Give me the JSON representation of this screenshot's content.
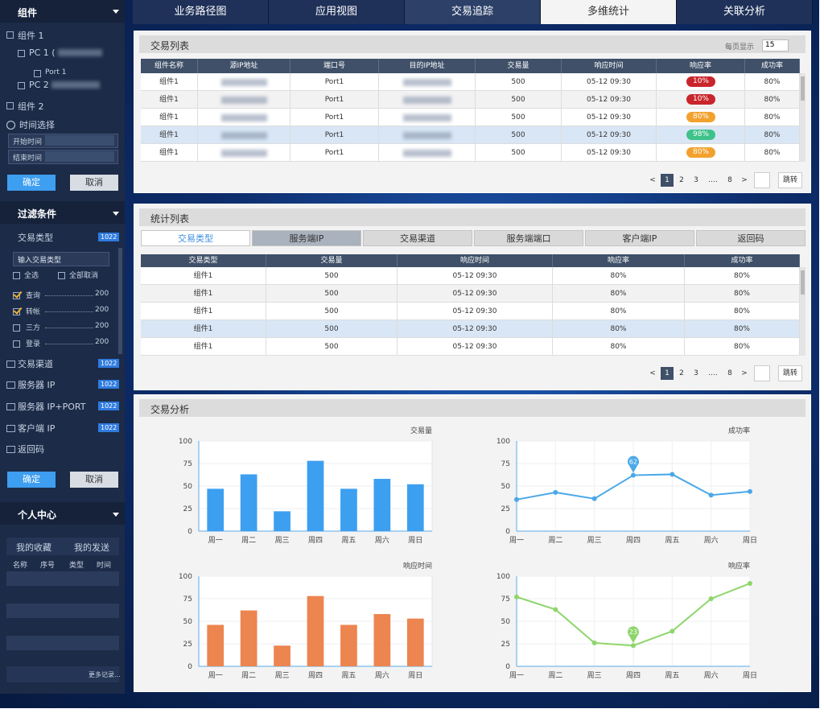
{
  "sidebar": {
    "components": {
      "title": "组件",
      "group1": "组件 1",
      "pc1": "PC 1 (",
      "port1": "Port 1",
      "pc2": "PC 2",
      "group2": "组件 2"
    },
    "time": {
      "title": "时间选择",
      "start": "开始时间",
      "end": "结束时间",
      "confirm": "确定",
      "cancel": "取消"
    },
    "filter": {
      "title": "过滤条件",
      "type_title": "交易类型",
      "type_count": 1022,
      "placeholder": "输入交易类型",
      "select_all": "全选",
      "deselect_all": "全部取消",
      "items": [
        {
          "label": "查询",
          "count": 200,
          "checked": true
        },
        {
          "label": "转帐",
          "count": 200,
          "checked": true
        },
        {
          "label": "三方",
          "count": 200,
          "checked": false
        },
        {
          "label": "登录",
          "count": 200,
          "checked": false
        }
      ],
      "groups": [
        {
          "label": "交易渠道",
          "count": 1022
        },
        {
          "label": "服务器 IP",
          "count": 1022
        },
        {
          "label": "服务器 IP+PORT",
          "count": 1022
        },
        {
          "label": "客户端 IP",
          "count": 1022
        },
        {
          "label": "返回码"
        }
      ],
      "confirm": "确定",
      "cancel": "取消"
    },
    "personal": {
      "title": "个人中心",
      "tabs": [
        "我的收藏",
        "我的发送"
      ],
      "columns": [
        "名称",
        "序号",
        "类型",
        "时间"
      ],
      "more": "更多记录..."
    }
  },
  "nav": {
    "tabs": [
      "业务路径图",
      "应用视图",
      "交易追踪",
      "多维统计",
      "关联分析"
    ],
    "active": 3,
    "hovered": 2
  },
  "transactions": {
    "title": "交易列表",
    "page_size_label": "每页显示",
    "page_size": 15,
    "columns": [
      "组件名称",
      "源IP地址",
      "端口号",
      "目的IP地址",
      "交易量",
      "响应时间",
      "响应率",
      "成功率"
    ],
    "rows": [
      [
        "组件1",
        null,
        "Port1",
        null,
        500,
        "05-12 09:30",
        "10%",
        "80%"
      ],
      [
        "组件1",
        null,
        "Port1",
        null,
        500,
        "05-12 09:30",
        "10%",
        "80%"
      ],
      [
        "组件1",
        null,
        "Port1",
        null,
        500,
        "05-12 09:30",
        "80%",
        "80%"
      ],
      [
        "组件1",
        null,
        "Port1",
        null,
        500,
        "05-12 09:30",
        "98%",
        "80%"
      ],
      [
        "组件1",
        null,
        "Port1",
        null,
        500,
        "05-12 09:30",
        "80%",
        "80%"
      ]
    ],
    "rate_colors": [
      "#c9252c",
      "#c9252c",
      "#f2a12e",
      "#3fc28a",
      "#f2a12e"
    ],
    "selected_row": 3,
    "pagination": {
      "prev": "<",
      "pages": [
        1,
        2,
        3
      ],
      "ellipsis": "....",
      "last": 8,
      "next": ">",
      "jump": "跳转",
      "current": 1
    }
  },
  "stats": {
    "title": "统计列表",
    "tabs": [
      "交易类型",
      "服务端IP",
      "交易渠道",
      "服务端端口",
      "客户端IP",
      "返回码"
    ],
    "active_tab": 0,
    "hovered_tab": 1,
    "columns": [
      "交易类型",
      "交易量",
      "响应时间",
      "响应率",
      "成功率"
    ],
    "rows": [
      [
        "组件1",
        500,
        "05-12 09:30",
        "80%",
        "80%"
      ],
      [
        "组件1",
        500,
        "05-12 09:30",
        "80%",
        "80%"
      ],
      [
        "组件1",
        500,
        "05-12 09:30",
        "80%",
        "80%"
      ],
      [
        "组件1",
        500,
        "05-12 09:30",
        "80%",
        "80%"
      ],
      [
        "组件1",
        500,
        "05-12 09:30",
        "80%",
        "80%"
      ]
    ],
    "selected_row": 3,
    "pagination": {
      "prev": "<",
      "pages": [
        1,
        2,
        3
      ],
      "ellipsis": "....",
      "last": 8,
      "next": ">",
      "jump": "跳转",
      "current": 1
    }
  },
  "analysis": {
    "title": "交易分析"
  },
  "chart_data": [
    {
      "type": "bar",
      "title": "交易量",
      "categories": [
        "周一",
        "周二",
        "周三",
        "周四",
        "周五",
        "周六",
        "周日"
      ],
      "values": [
        47,
        63,
        22,
        78,
        47,
        58,
        52
      ],
      "color": "#3d9ff0",
      "ylim": [
        0,
        100
      ],
      "yticks": [
        0,
        25,
        50,
        75,
        100
      ],
      "grid": true
    },
    {
      "type": "line",
      "title": "成功率",
      "categories": [
        "周一",
        "周二",
        "周三",
        "周四",
        "周五",
        "周六",
        "周日"
      ],
      "values": [
        35,
        43,
        36,
        62,
        63,
        40,
        44
      ],
      "value_labels": [
        null,
        null,
        null,
        "62",
        null,
        null,
        null
      ],
      "color": "#4aa8e8",
      "ylim": [
        0,
        100
      ],
      "yticks": [
        0,
        25,
        50,
        75,
        100
      ],
      "grid": true
    },
    {
      "type": "bar",
      "title": "响应时间",
      "categories": [
        "周一",
        "周二",
        "周三",
        "周四",
        "周五",
        "周六",
        "周日"
      ],
      "values": [
        46,
        62,
        23,
        78,
        46,
        58,
        53
      ],
      "color": "#ec8550",
      "ylim": [
        0,
        100
      ],
      "yticks": [
        0,
        25,
        50,
        75,
        100
      ],
      "grid": true
    },
    {
      "type": "line",
      "title": "响应率",
      "categories": [
        "周一",
        "周二",
        "周三",
        "周四",
        "周五",
        "周六",
        "周日"
      ],
      "values": [
        77,
        63,
        26,
        23,
        39,
        75,
        92
      ],
      "value_labels": [
        null,
        null,
        null,
        "23",
        null,
        null,
        null
      ],
      "color": "#8ed66c",
      "ylim": [
        0,
        100
      ],
      "yticks": [
        0,
        25,
        50,
        75,
        100
      ],
      "grid": true
    }
  ]
}
